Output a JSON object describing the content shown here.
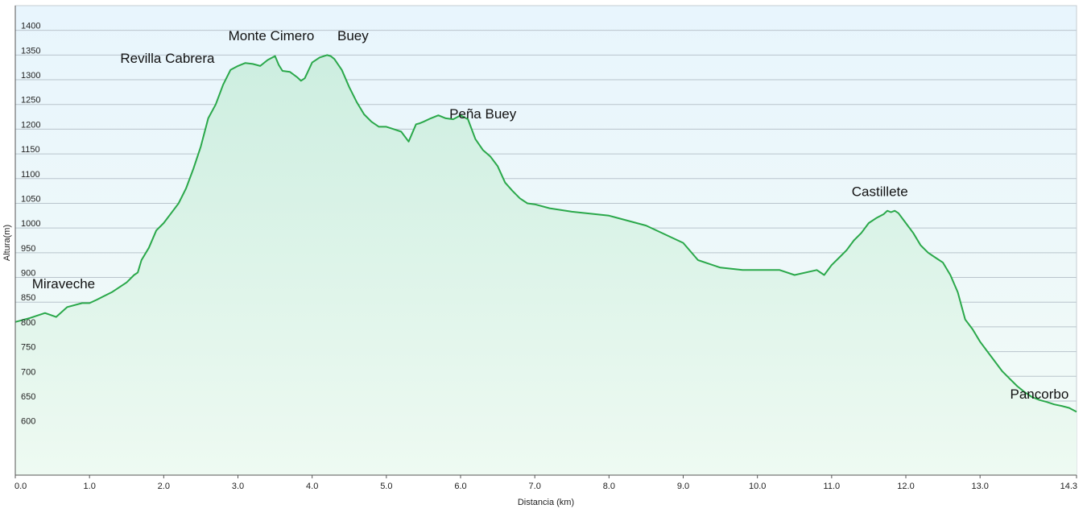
{
  "chart_data": {
    "type": "area",
    "title": "",
    "xlabel": "Distancia  (km)",
    "ylabel": "Altura(m)",
    "xlim": [
      0,
      14.3
    ],
    "ylim": [
      500,
      1450
    ],
    "x_ticks": [
      0,
      1,
      2,
      3,
      4,
      5,
      6,
      7,
      8,
      9,
      10,
      11,
      12,
      13,
      14.3
    ],
    "x_tick_labels": [
      "0.0",
      "1.0",
      "2.0",
      "3.0",
      "4.0",
      "5.0",
      "6.0",
      "7.0",
      "8.0",
      "9.0",
      "10.0",
      "11.0",
      "12.0",
      "13.0",
      "14.3"
    ],
    "y_ticks": [
      600,
      650,
      700,
      750,
      800,
      850,
      900,
      950,
      1000,
      1050,
      1100,
      1150,
      1200,
      1250,
      1300,
      1350,
      1400
    ],
    "y_tick_labels": [
      "600",
      "650",
      "700",
      "750",
      "800",
      "850",
      "900",
      "950",
      "1000",
      "1050",
      "1100",
      "1150",
      "1200",
      "1250",
      "1300",
      "1350",
      "1400"
    ],
    "grid": true,
    "colors": {
      "line": "#2aa84a",
      "fill_top": "#cdeee0",
      "fill_bottom": "#eefaf2",
      "background_top": "#e8f5fd",
      "background_bottom": "#f2fbf6",
      "grid": "#b9c4cc",
      "axis": "#555555"
    },
    "series": [
      {
        "x": [
          0,
          0.2,
          0.4,
          0.55,
          0.7,
          0.9,
          1.0,
          1.1,
          1.3,
          1.5,
          1.6,
          1.65,
          1.7,
          1.8,
          1.9,
          2.0,
          2.1,
          2.2,
          2.3,
          2.4,
          2.5,
          2.6,
          2.7,
          2.8,
          2.9,
          3.0,
          3.1,
          3.2,
          3.3,
          3.4,
          3.5,
          3.55,
          3.6,
          3.7,
          3.8,
          3.85,
          3.9,
          4.0,
          4.1,
          4.2,
          4.25,
          4.3,
          4.4,
          4.5,
          4.6,
          4.7,
          4.8,
          4.9,
          5.0,
          5.1,
          5.2,
          5.3,
          5.4,
          5.45,
          5.5,
          5.6,
          5.7,
          5.8,
          5.9,
          6.0,
          6.1,
          6.2,
          6.3,
          6.4,
          6.5,
          6.6,
          6.7,
          6.8,
          6.9,
          7.0,
          7.2,
          7.5,
          8.0,
          8.5,
          9.0,
          9.2,
          9.5,
          9.8,
          10.0,
          10.3,
          10.5,
          10.8,
          10.9,
          11.0,
          11.1,
          11.2,
          11.3,
          11.4,
          11.5,
          11.6,
          11.7,
          11.75,
          11.8,
          11.85,
          11.9,
          12.0,
          12.1,
          12.2,
          12.3,
          12.4,
          12.5,
          12.6,
          12.7,
          12.8,
          12.9,
          13.0,
          13.1,
          13.2,
          13.3,
          13.4,
          13.5,
          13.6,
          13.7,
          13.8,
          13.9,
          14.0,
          14.1,
          14.2,
          14.3
        ],
        "y": [
          810,
          818,
          828,
          820,
          840,
          848,
          848,
          855,
          870,
          890,
          905,
          910,
          935,
          960,
          995,
          1010,
          1030,
          1050,
          1080,
          1120,
          1165,
          1222,
          1250,
          1290,
          1320,
          1328,
          1334,
          1332,
          1328,
          1340,
          1348,
          1330,
          1318,
          1316,
          1305,
          1298,
          1303,
          1335,
          1345,
          1350,
          1348,
          1342,
          1320,
          1285,
          1255,
          1230,
          1215,
          1205,
          1205,
          1200,
          1195,
          1175,
          1210,
          1212,
          1215,
          1222,
          1228,
          1222,
          1220,
          1228,
          1220,
          1180,
          1158,
          1145,
          1125,
          1092,
          1075,
          1060,
          1050,
          1048,
          1040,
          1033,
          1025,
          1005,
          970,
          935,
          920,
          915,
          915,
          915,
          905,
          915,
          905,
          925,
          940,
          955,
          975,
          990,
          1010,
          1020,
          1028,
          1035,
          1032,
          1035,
          1030,
          1010,
          990,
          965,
          950,
          940,
          930,
          905,
          870,
          815,
          795,
          770,
          750,
          730,
          710,
          695,
          680,
          668,
          658,
          652,
          648,
          643,
          640,
          636,
          628
        ]
      }
    ],
    "annotations": [
      {
        "text": "Miraveche",
        "x": 0.65,
        "y": 878
      },
      {
        "text": "Revilla Cabrera",
        "x": 2.05,
        "y": 1334
      },
      {
        "text": "Monte Cimero",
        "x": 3.45,
        "y": 1380
      },
      {
        "text": "Buey",
        "x": 4.55,
        "y": 1380
      },
      {
        "text": "Peña Buey",
        "x": 6.3,
        "y": 1222
      },
      {
        "text": "Castillete",
        "x": 11.65,
        "y": 1065
      },
      {
        "text": "Pancorbo",
        "x": 13.8,
        "y": 655
      }
    ]
  }
}
